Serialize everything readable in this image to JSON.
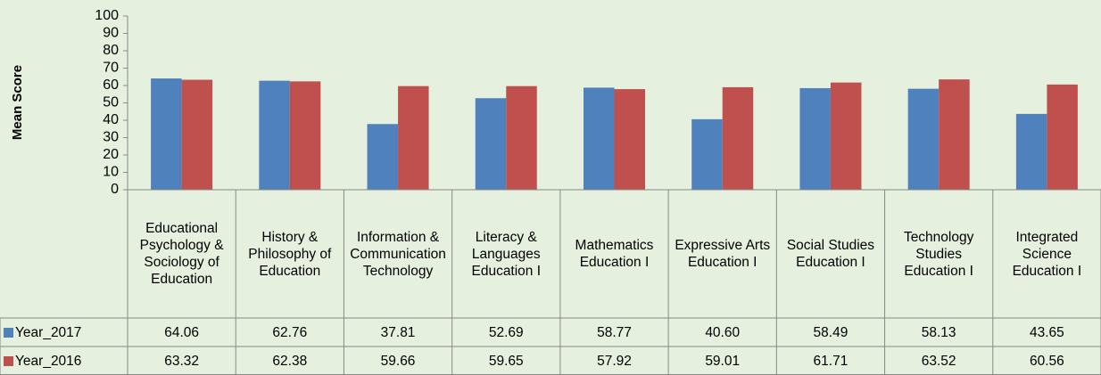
{
  "chart_data": {
    "type": "bar",
    "ylabel": "Mean Score",
    "categories": [
      "Educational Psychology & Sociology of Education",
      "History & Philosophy of Education",
      "Information & Communication Technology",
      "Literacy & Languages Education I",
      "Mathematics Education I",
      "Expressive Arts Education I",
      "Social Studies Education I",
      "Technology Studies Education I",
      "Integrated Science Education I"
    ],
    "series": [
      {
        "name": "Year_2017",
        "color": "#4f81bd",
        "values": [
          64.06,
          62.76,
          37.81,
          52.69,
          58.77,
          40.6,
          58.49,
          58.13,
          43.65
        ],
        "value_labels": [
          "64.06",
          "62.76",
          "37.81",
          "52.69",
          "58.77",
          "40.60",
          "58.49",
          "58.13",
          "43.65"
        ]
      },
      {
        "name": "Year_2016",
        "color": "#c0504d",
        "values": [
          63.32,
          62.38,
          59.66,
          59.65,
          57.92,
          59.01,
          61.71,
          63.52,
          60.56
        ],
        "value_labels": [
          "63.32",
          "62.38",
          "59.66",
          "59.65",
          "57.92",
          "59.01",
          "61.71",
          "63.52",
          "60.56"
        ]
      }
    ],
    "ylim": [
      0,
      100
    ],
    "yticks": [
      0,
      10,
      20,
      30,
      40,
      50,
      60,
      70,
      80,
      90,
      100
    ],
    "grid": false,
    "data_table": true
  }
}
